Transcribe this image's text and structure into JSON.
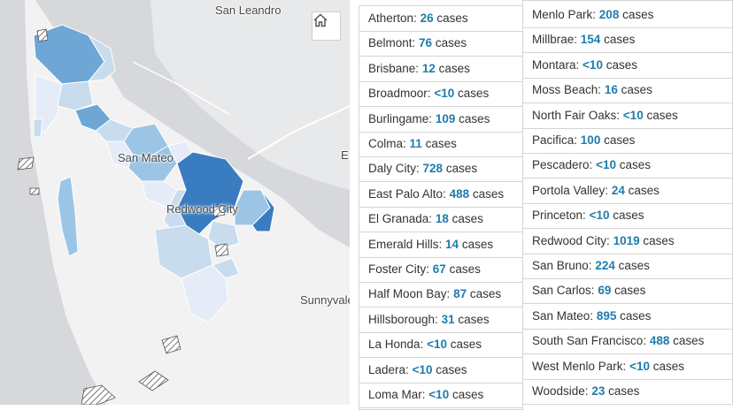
{
  "map": {
    "labels": {
      "san_leandro": "San Leandro",
      "san_mateo": "San Mateo",
      "redwood_city": "Redwood City",
      "sunnyvale": "Sunnyvale",
      "edge": "E"
    },
    "home_icon": "home-icon",
    "colors": {
      "land": "#f2f2f2",
      "water": "#d6d8db",
      "lightest": "#e6ecf7",
      "light": "#c8dcee",
      "medium": "#9cc4e4",
      "strong": "#6ea6d5",
      "darkest": "#3a7cc0"
    }
  },
  "suffix": "cases",
  "left_list": [
    {
      "name": "Atherton",
      "count": "26"
    },
    {
      "name": "Belmont",
      "count": "76"
    },
    {
      "name": "Brisbane",
      "count": "12"
    },
    {
      "name": "Broadmoor",
      "count": "<10"
    },
    {
      "name": "Burlingame",
      "count": "109"
    },
    {
      "name": "Colma",
      "count": "11"
    },
    {
      "name": "Daly City",
      "count": "728"
    },
    {
      "name": "East Palo Alto",
      "count": "488"
    },
    {
      "name": "El Granada",
      "count": "18"
    },
    {
      "name": "Emerald Hills",
      "count": "14"
    },
    {
      "name": "Foster City",
      "count": "67"
    },
    {
      "name": "Half Moon Bay",
      "count": "87"
    },
    {
      "name": "Hillsborough",
      "count": "31"
    },
    {
      "name": "La Honda",
      "count": "<10"
    },
    {
      "name": "Ladera",
      "count": "<10"
    },
    {
      "name": "Loma Mar",
      "count": "<10"
    }
  ],
  "right_list": [
    {
      "name": "Menlo Park",
      "count": "208"
    },
    {
      "name": "Millbrae",
      "count": "154"
    },
    {
      "name": "Montara",
      "count": "<10"
    },
    {
      "name": "Moss Beach",
      "count": "16"
    },
    {
      "name": "North Fair Oaks",
      "count": "<10"
    },
    {
      "name": "Pacifica",
      "count": "100"
    },
    {
      "name": "Pescadero",
      "count": "<10"
    },
    {
      "name": "Portola Valley",
      "count": "24"
    },
    {
      "name": "Princeton",
      "count": "<10"
    },
    {
      "name": "Redwood City",
      "count": "1019"
    },
    {
      "name": "San Bruno",
      "count": "224"
    },
    {
      "name": "San Carlos",
      "count": "69"
    },
    {
      "name": "San Mateo",
      "count": "895"
    },
    {
      "name": "South San Francisco",
      "count": "488"
    },
    {
      "name": "West Menlo Park",
      "count": "<10"
    },
    {
      "name": "Woodside",
      "count": "23"
    }
  ]
}
